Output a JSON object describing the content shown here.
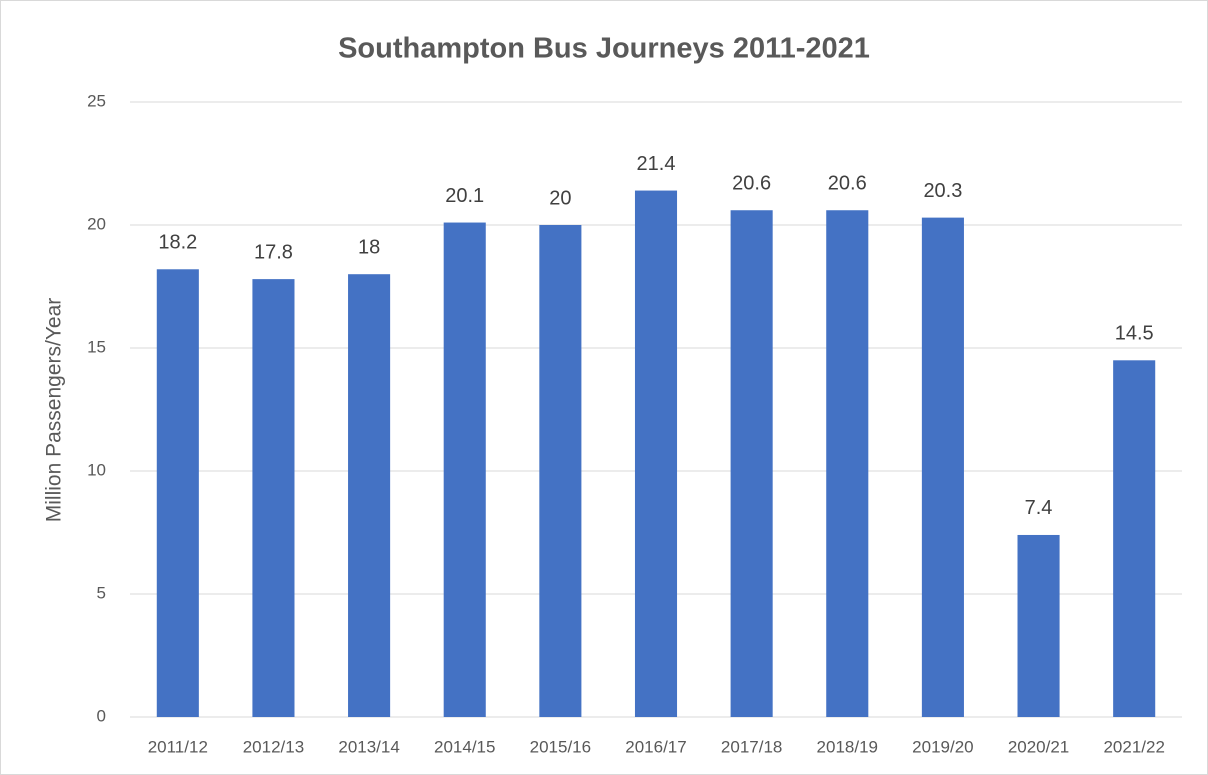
{
  "chart_data": {
    "type": "bar",
    "title": "Southampton Bus Journeys 2011-2021",
    "y_label": "Million Passengers/Year",
    "categories": [
      "2011/12",
      "2012/13",
      "2013/14",
      "2014/15",
      "2015/16",
      "2016/17",
      "2017/18",
      "2018/19",
      "2019/20",
      "2020/21",
      "2021/22"
    ],
    "values": [
      18.2,
      17.8,
      18,
      20.1,
      20,
      21.4,
      20.6,
      20.6,
      20.3,
      7.4,
      14.5
    ],
    "color": "#4472c4",
    "ylim": [
      0,
      25
    ],
    "yticks": [
      0,
      5,
      10,
      15,
      20,
      25
    ],
    "grid": true
  }
}
